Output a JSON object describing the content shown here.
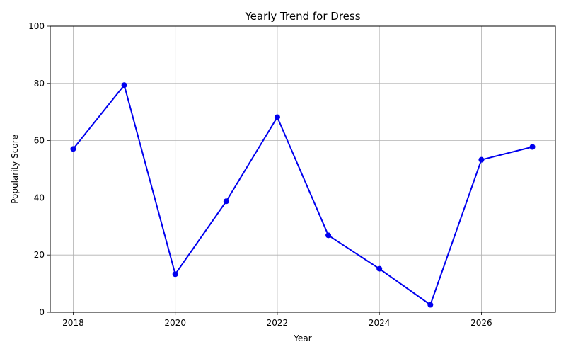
{
  "chart_data": {
    "type": "line",
    "title": "Yearly Trend for Dress",
    "xlabel": "Year",
    "ylabel": "Popularity Score",
    "x": [
      2018,
      2019,
      2020,
      2021,
      2022,
      2023,
      2024,
      2025,
      2026,
      2027
    ],
    "series": [
      {
        "values": [
          57.1,
          79.4,
          13.3,
          38.8,
          68.2,
          26.9,
          15.2,
          2.6,
          53.3,
          57.8
        ],
        "color": "#0000ee",
        "marker": "circle"
      }
    ],
    "xlim": [
      2017.55,
      2027.45
    ],
    "ylim": [
      0,
      100
    ],
    "xticks": [
      "2018",
      "2020",
      "2022",
      "2024",
      "2026"
    ],
    "yticks": [
      "0",
      "20",
      "40",
      "60",
      "80",
      "100"
    ],
    "grid": true
  }
}
